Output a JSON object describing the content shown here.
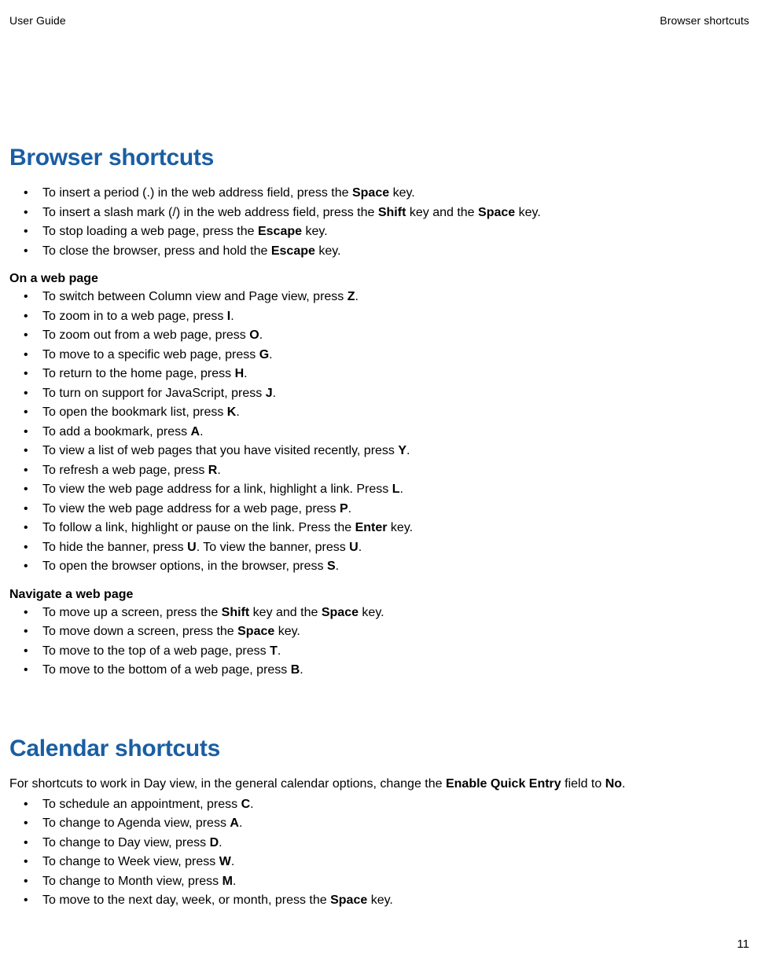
{
  "header": {
    "left": "User Guide",
    "right": "Browser shortcuts"
  },
  "browser": {
    "title": "Browser shortcuts",
    "intro": [
      {
        "pre": "To insert a period (.) in the web address field, press the ",
        "b1": "Space",
        "mid1": " key."
      },
      {
        "pre": "To insert a slash mark (/) in the web address field, press the ",
        "b1": "Shift",
        "mid1": " key and the ",
        "b2": "Space",
        "mid2": " key."
      },
      {
        "pre": "To stop loading a web page, press the ",
        "b1": "Escape",
        "mid1": " key."
      },
      {
        "pre": "To close the browser, press and hold the ",
        "b1": "Escape",
        "mid1": " key."
      }
    ],
    "onpage_label": "On a web page",
    "onpage": [
      {
        "pre": "To switch between Column view and Page view, press ",
        "b1": "Z",
        "mid1": "."
      },
      {
        "pre": "To zoom in to a web page, press ",
        "b1": "I",
        "mid1": "."
      },
      {
        "pre": "To zoom out from a web page, press ",
        "b1": "O",
        "mid1": "."
      },
      {
        "pre": "To move to a specific web page, press ",
        "b1": "G",
        "mid1": "."
      },
      {
        "pre": "To return to the home page, press ",
        "b1": "H",
        "mid1": "."
      },
      {
        "pre": "To turn on support for JavaScript, press ",
        "b1": "J",
        "mid1": "."
      },
      {
        "pre": "To open the bookmark list, press ",
        "b1": "K",
        "mid1": "."
      },
      {
        "pre": "To add a bookmark, press ",
        "b1": "A",
        "mid1": "."
      },
      {
        "pre": "To view a list of web pages that you have visited recently, press ",
        "b1": "Y",
        "mid1": "."
      },
      {
        "pre": "To refresh a web page, press ",
        "b1": "R",
        "mid1": "."
      },
      {
        "pre": "To view the web page address for a link, highlight a link. Press ",
        "b1": "L",
        "mid1": "."
      },
      {
        "pre": "To view the web page address for a web page, press ",
        "b1": "P",
        "mid1": "."
      },
      {
        "pre": "To follow a link, highlight or pause on the link. Press the ",
        "b1": "Enter",
        "mid1": " key."
      },
      {
        "pre": "To hide the banner, press ",
        "b1": "U",
        "mid1": ". To view the banner, press ",
        "b2": "U",
        "mid2": "."
      },
      {
        "pre": "To open the browser options, in the browser, press ",
        "b1": "S",
        "mid1": "."
      }
    ],
    "nav_label": "Navigate a web page",
    "nav": [
      {
        "pre": "To move up a screen, press the ",
        "b1": "Shift",
        "mid1": " key and the ",
        "b2": "Space",
        "mid2": " key."
      },
      {
        "pre": "To move down a screen, press the ",
        "b1": "Space",
        "mid1": " key."
      },
      {
        "pre": "To move to the top of a web page, press ",
        "b1": "T",
        "mid1": "."
      },
      {
        "pre": "To move to the bottom of a web page, press ",
        "b1": "B",
        "mid1": "."
      }
    ]
  },
  "calendar": {
    "title": "Calendar shortcuts",
    "intro_pre": "For shortcuts to work in Day view, in the general calendar options, change the ",
    "intro_b1": "Enable Quick Entry",
    "intro_mid": " field to ",
    "intro_b2": "No",
    "intro_post": ".",
    "items": [
      {
        "pre": "To schedule an appointment, press ",
        "b1": "C",
        "mid1": "."
      },
      {
        "pre": "To change to Agenda view, press ",
        "b1": "A",
        "mid1": "."
      },
      {
        "pre": "To change to Day view, press ",
        "b1": "D",
        "mid1": "."
      },
      {
        "pre": "To change to Week view, press ",
        "b1": "W",
        "mid1": "."
      },
      {
        "pre": "To change to Month view, press ",
        "b1": "M",
        "mid1": "."
      },
      {
        "pre": "To move to the next day, week, or month, press the ",
        "b1": "Space",
        "mid1": " key."
      }
    ]
  },
  "page_number": "11"
}
